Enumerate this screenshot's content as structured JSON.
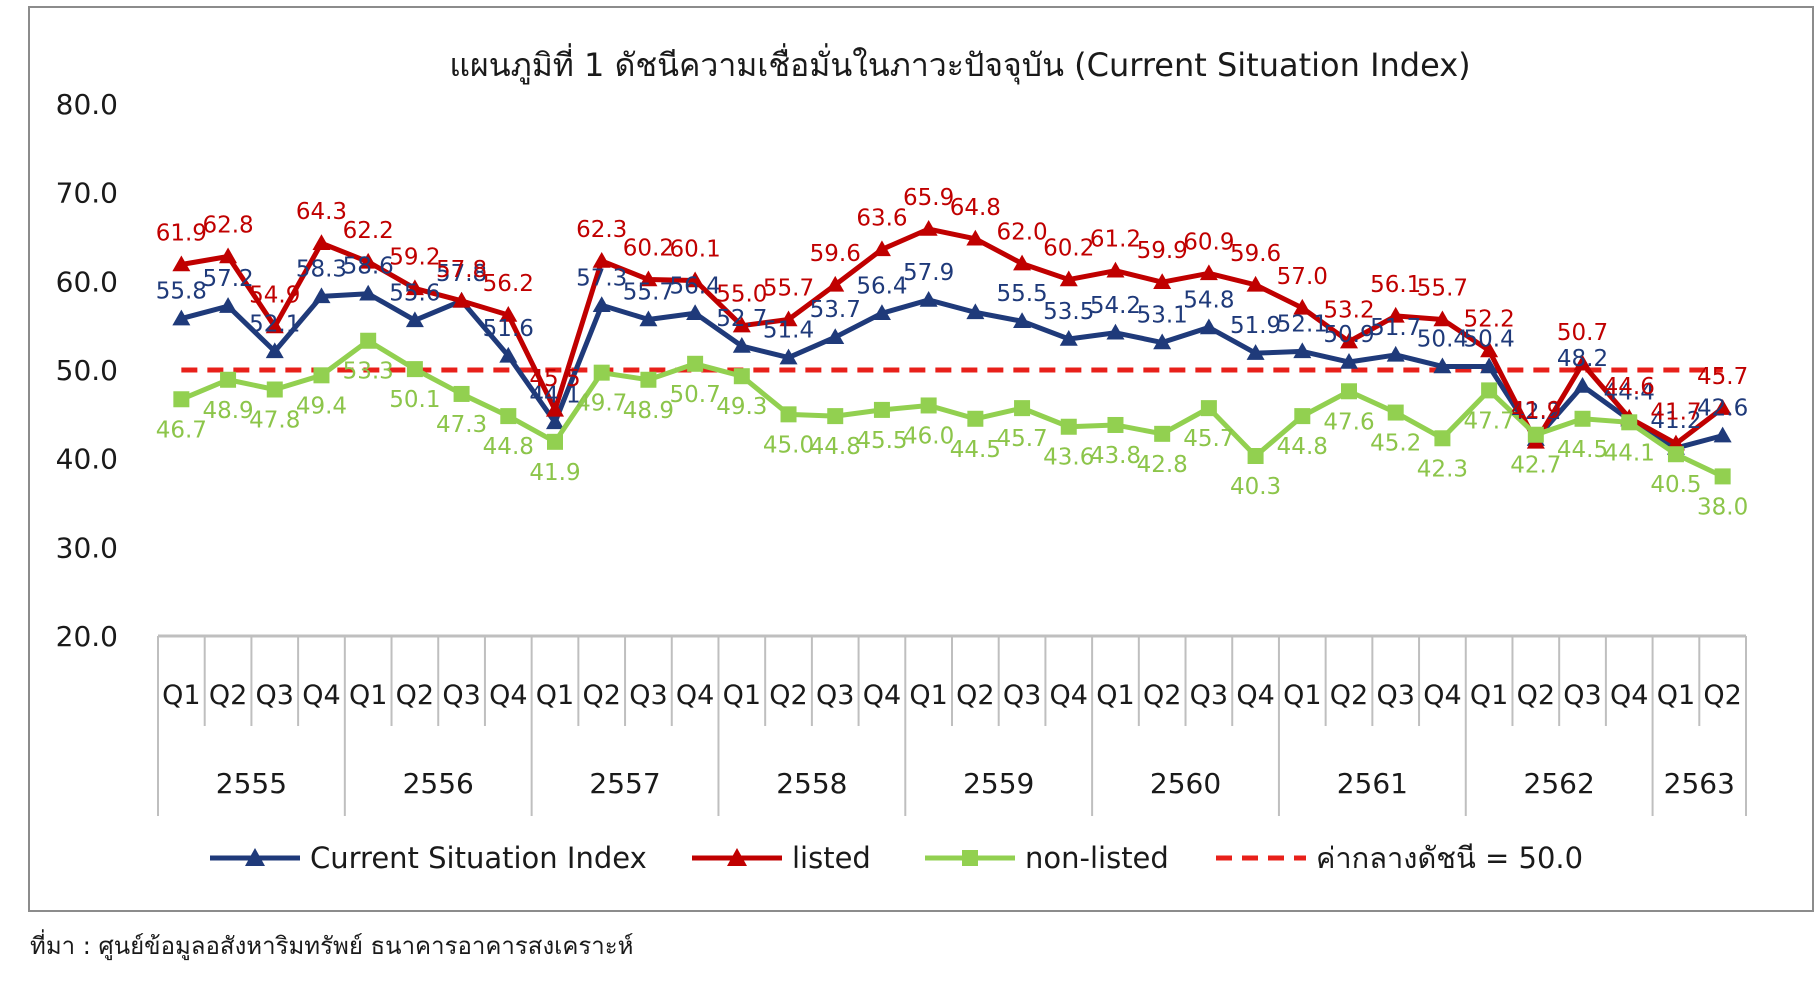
{
  "source_note": "ที่มา : ศูนย์ข้อมูลอสังหาริมทรัพย์ ธนาคารอาคารสงเคราะห์",
  "chart_data": {
    "type": "line",
    "title": "แผนภูมิที่ 1 ดัชนีความเชื่อมั่นในภาวะปัจจุบัน (Current Situation Index)",
    "xlabel": "",
    "ylabel": "",
    "ylim": [
      20,
      80
    ],
    "yticks": [
      "20.0",
      "30.0",
      "40.0",
      "50.0",
      "60.0",
      "70.0",
      "80.0"
    ],
    "grid": false,
    "legend_position": "bottom",
    "x_quarters": [
      "Q1",
      "Q2",
      "Q3",
      "Q4",
      "Q1",
      "Q2",
      "Q3",
      "Q4",
      "Q1",
      "Q2",
      "Q3",
      "Q4",
      "Q1",
      "Q2",
      "Q3",
      "Q4",
      "Q1",
      "Q2",
      "Q3",
      "Q4",
      "Q1",
      "Q2",
      "Q3",
      "Q4",
      "Q1",
      "Q2",
      "Q3",
      "Q4",
      "Q1",
      "Q2",
      "Q3",
      "Q4",
      "Q1",
      "Q2"
    ],
    "year_groups": [
      {
        "label": "2555",
        "count": 4
      },
      {
        "label": "2556",
        "count": 4
      },
      {
        "label": "2557",
        "count": 4
      },
      {
        "label": "2558",
        "count": 4
      },
      {
        "label": "2559",
        "count": 4
      },
      {
        "label": "2560",
        "count": 4
      },
      {
        "label": "2561",
        "count": 4
      },
      {
        "label": "2562",
        "count": 4
      },
      {
        "label": "2563",
        "count": 2
      }
    ],
    "series": [
      {
        "name": "Current Situation Index",
        "color": "#1f3a7a",
        "marker": "triangle",
        "values": [
          55.8,
          57.2,
          52.1,
          58.3,
          58.6,
          55.6,
          57.8,
          51.6,
          44.1,
          57.3,
          55.7,
          56.4,
          52.7,
          51.4,
          53.7,
          56.4,
          57.9,
          56.5,
          55.5,
          53.5,
          54.2,
          53.1,
          54.8,
          51.9,
          52.1,
          50.9,
          51.7,
          50.4,
          50.4,
          42.2,
          48.2,
          44.4,
          41.2,
          42.6
        ],
        "labels": [
          "55.8",
          "57.2",
          "52.1",
          "58.3",
          "58.6",
          "55.6",
          "57.8",
          "51.6",
          "44.1",
          "57.3",
          "55.7",
          "56.4",
          "52.7",
          "51.4",
          "53.7",
          "56.4",
          "57.9",
          "",
          "55.5",
          "53.5",
          "54.2",
          "53.1",
          "54.8",
          "51.9",
          "52.1",
          "50.9",
          "51.7",
          "50.4",
          "50.4",
          "42.2",
          "48.2",
          "44.4",
          "41.2",
          "42.6"
        ]
      },
      {
        "name": "listed",
        "color": "#c00000",
        "marker": "triangle",
        "values": [
          61.9,
          62.8,
          54.9,
          64.3,
          62.2,
          59.2,
          57.8,
          56.2,
          45.5,
          62.3,
          60.2,
          60.1,
          55.0,
          55.7,
          59.6,
          63.6,
          65.9,
          64.8,
          62.0,
          60.2,
          61.2,
          59.9,
          60.9,
          59.6,
          57.0,
          53.2,
          56.1,
          55.7,
          52.2,
          41.9,
          50.7,
          44.6,
          41.7,
          45.7
        ],
        "labels": [
          "61.9",
          "62.8",
          "54.9",
          "64.3",
          "62.2",
          "59.2",
          "57.8",
          "56.2",
          "45.5",
          "62.3",
          "60.2",
          "60.1",
          "55.0",
          "55.7",
          "59.6",
          "63.6",
          "65.9",
          "64.8",
          "62.0",
          "60.2",
          "61.2",
          "59.9",
          "60.9",
          "59.6",
          "57.0",
          "53.2",
          "56.1",
          "55.7",
          "52.2",
          "41.9",
          "50.7",
          "44.6",
          "41.7",
          "45.7"
        ]
      },
      {
        "name": "non-listed",
        "color": "#92d050",
        "marker": "square",
        "values": [
          46.7,
          48.9,
          47.8,
          49.4,
          53.3,
          50.1,
          47.3,
          44.8,
          41.9,
          49.7,
          48.9,
          50.7,
          49.3,
          45.0,
          44.8,
          45.5,
          46.0,
          44.5,
          45.7,
          43.6,
          43.8,
          42.8,
          45.7,
          40.3,
          44.8,
          47.6,
          45.2,
          42.3,
          47.7,
          42.7,
          44.5,
          44.1,
          40.5,
          38.0
        ],
        "labels": [
          "46.7",
          "48.9",
          "47.8",
          "49.4",
          "53.3",
          "50.1",
          "47.3",
          "44.8",
          "41.9",
          "49.7",
          "48.9",
          "50.7",
          "49.3",
          "45.0",
          "44.8",
          "45.5",
          "46.0",
          "44.5",
          "45.7",
          "43.6",
          "43.8",
          "42.8",
          "45.7",
          "40.3",
          "44.8",
          "47.6",
          "45.2",
          "42.3",
          "47.7",
          "42.7",
          "44.5",
          "44.1",
          "40.5",
          "38.0"
        ]
      },
      {
        "name": "ค่ากลางดัชนี = 50.0",
        "color": "#e8201a",
        "marker": "dash",
        "values": [
          50,
          50,
          50,
          50,
          50,
          50,
          50,
          50,
          50,
          50,
          50,
          50,
          50,
          50,
          50,
          50,
          50,
          50,
          50,
          50,
          50,
          50,
          50,
          50,
          50,
          50,
          50,
          50,
          50,
          50,
          50,
          50,
          50,
          50
        ]
      }
    ]
  }
}
